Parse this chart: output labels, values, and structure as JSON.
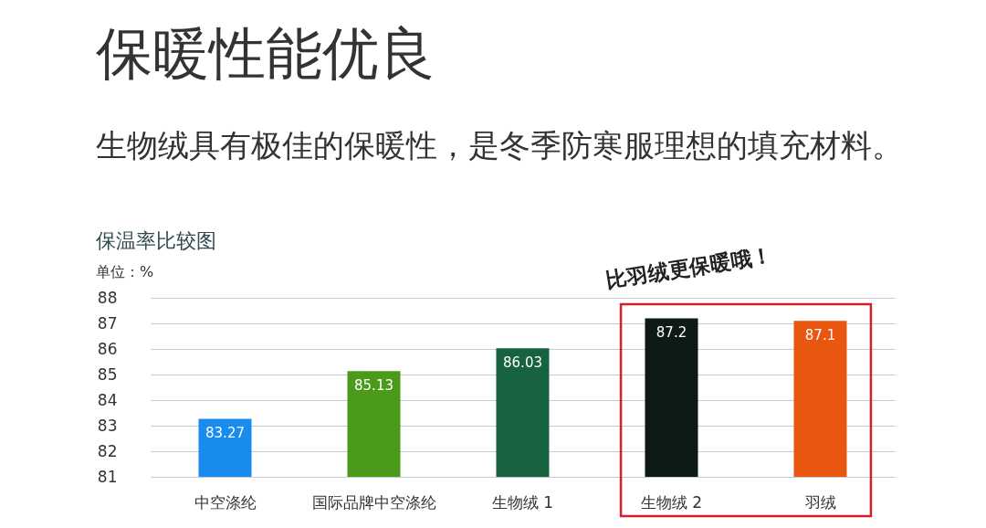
{
  "chart_data": {
    "type": "bar",
    "title": "保暖性能优良",
    "subtitle": "生物绒具有极佳的保暖性，是冬季防寒服理想的填充材料。",
    "ylabel": "单位：%",
    "annotations": [
      "保温率比较图",
      "比羽绒更保暖哦！"
    ],
    "categories": [
      "中空涤纶",
      "国际品牌中空涤纶",
      "生物绒 1",
      "生物绒 2",
      "羽绒"
    ],
    "values": [
      83.27,
      85.13,
      86.03,
      87.2,
      87.1
    ],
    "colors": [
      "#1a8cf0",
      "#4c9a1c",
      "#17623f",
      "#0e1a14",
      "#e8560f"
    ],
    "ylim": [
      81,
      88
    ],
    "yticks": [
      81,
      82,
      83,
      84,
      85,
      86,
      87,
      88
    ],
    "grid": "y",
    "data_labels": true
  }
}
